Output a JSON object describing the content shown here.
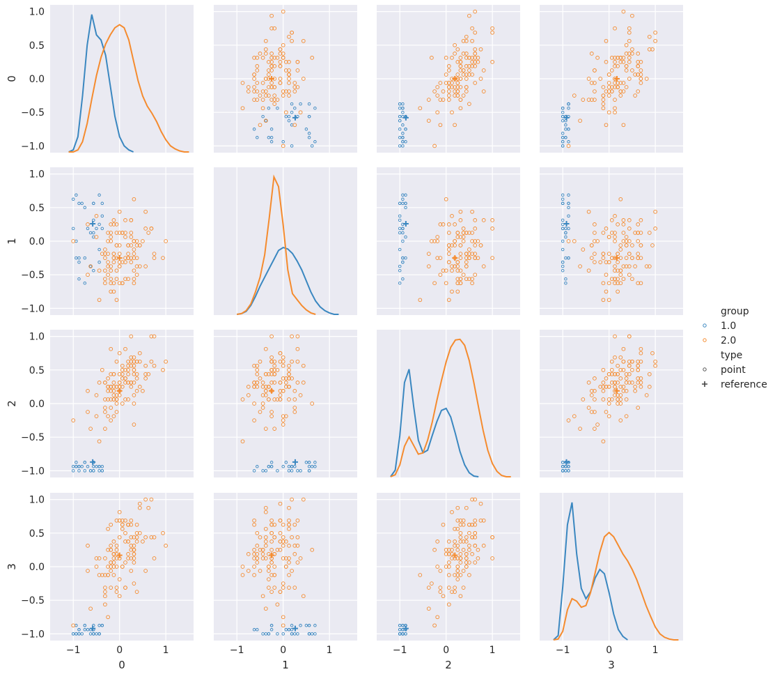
{
  "chart_data": {
    "type": "scatter",
    "kind": "pairplot",
    "variables": [
      "0",
      "1",
      "2",
      "3"
    ],
    "xlim": [
      -1.5,
      1.6
    ],
    "ylim": [
      -1.1,
      1.1
    ],
    "xticks": [
      -1,
      0,
      1
    ],
    "yticks": [
      -1.0,
      -0.5,
      0.0,
      0.5,
      1.0
    ],
    "xtick_labels": [
      "−1",
      "0",
      "1"
    ],
    "ytick_labels": [
      "−1.0",
      "−0.5",
      "0.0",
      "0.5",
      "1.0"
    ],
    "grid": true,
    "diagonal": "kde",
    "legend": {
      "placement": "right",
      "hue_title": "group",
      "hue_entries": [
        {
          "label": "1.0",
          "color": "#3a87c0"
        },
        {
          "label": "2.0",
          "color": "#f58b2e"
        }
      ],
      "style_title": "type",
      "style_entries": [
        {
          "label": "point",
          "marker": "circle"
        },
        {
          "label": "reference",
          "marker": "plus"
        }
      ]
    },
    "colors": {
      "1.0": "#3a87c0",
      "2.0": "#f58b2e",
      "panel_bg": "#eaeaf2",
      "grid": "#ffffff"
    },
    "reference_points": {
      "1.0": [
        -0.58,
        0.26,
        -0.87,
        -0.92
      ],
      "2.0": [
        0.0,
        -0.25,
        0.19,
        0.17
      ]
    },
    "point_clusters": {
      "note_dims": "per variable: [center, spread] for group 1.0 and 2.0 point clouds",
      "1.0": [
        [
          -0.72,
          0.18
        ],
        [
          0.2,
          0.35
        ],
        [
          -0.95,
          0.06
        ],
        [
          -0.95,
          0.06
        ]
      ],
      "2.0": [
        [
          0.05,
          0.35
        ],
        [
          -0.2,
          0.3
        ],
        [
          0.3,
          0.3
        ],
        [
          0.2,
          0.4
        ]
      ]
    },
    "kde": {
      "0": {
        "x": [
          -1.1,
          -1.0,
          -0.9,
          -0.8,
          -0.7,
          -0.6,
          -0.5,
          -0.4,
          -0.3,
          -0.2,
          -0.1,
          0.0,
          0.1,
          0.2,
          0.3,
          0.4,
          0.5,
          0.6,
          0.7,
          0.8,
          0.9,
          1.0,
          1.1,
          1.2,
          1.3,
          1.4,
          1.5
        ],
        "1.0": [
          0.0,
          0.02,
          0.15,
          0.55,
          1.05,
          1.35,
          1.15,
          1.1,
          0.95,
          0.65,
          0.35,
          0.15,
          0.06,
          0.02,
          0.0,
          null,
          null,
          null,
          null,
          null,
          null,
          null,
          null,
          null,
          null,
          null,
          null
        ],
        "2.0": [
          0.0,
          0.0,
          0.02,
          0.1,
          0.28,
          0.52,
          0.75,
          0.93,
          1.06,
          1.15,
          1.22,
          1.25,
          1.22,
          1.1,
          0.9,
          0.7,
          0.55,
          0.45,
          0.38,
          0.3,
          0.2,
          0.12,
          0.06,
          0.03,
          0.01,
          0.0,
          0.0
        ]
      },
      "1": {
        "x": [
          -1.0,
          -0.9,
          -0.8,
          -0.7,
          -0.6,
          -0.5,
          -0.4,
          -0.3,
          -0.2,
          -0.1,
          0.0,
          0.1,
          0.2,
          0.3,
          0.4,
          0.5,
          0.6,
          0.7,
          0.8,
          0.9,
          1.0,
          1.1,
          1.2
        ],
        "1.0": [
          0.0,
          0.01,
          0.04,
          0.12,
          0.24,
          0.38,
          0.5,
          0.62,
          0.74,
          0.86,
          0.9,
          0.88,
          0.82,
          0.72,
          0.6,
          0.45,
          0.3,
          0.18,
          0.1,
          0.05,
          0.02,
          0.0,
          0.0
        ],
        "2.0": [
          0.0,
          0.01,
          0.05,
          0.14,
          0.3,
          0.5,
          0.8,
          1.3,
          1.85,
          1.72,
          1.2,
          0.6,
          0.28,
          0.2,
          0.12,
          0.06,
          0.02,
          0.0,
          null,
          null,
          null,
          null,
          null
        ]
      },
      "2": {
        "x": [
          -1.2,
          -1.1,
          -1.0,
          -0.9,
          -0.8,
          -0.7,
          -0.6,
          -0.5,
          -0.4,
          -0.3,
          -0.2,
          -0.1,
          0.0,
          0.1,
          0.2,
          0.3,
          0.4,
          0.5,
          0.6,
          0.7,
          0.8,
          0.9,
          1.0,
          1.1,
          1.2,
          1.3,
          1.4
        ],
        "1.0": [
          0.0,
          0.1,
          0.62,
          1.42,
          1.62,
          1.05,
          0.55,
          0.36,
          0.4,
          0.62,
          0.83,
          1.0,
          1.03,
          0.9,
          0.65,
          0.38,
          0.18,
          0.06,
          0.01,
          0.0,
          null,
          null,
          null,
          null,
          null,
          null,
          null
        ],
        "2.0": [
          0.0,
          0.03,
          0.18,
          0.46,
          0.6,
          0.47,
          0.34,
          0.36,
          0.55,
          0.82,
          1.15,
          1.45,
          1.73,
          1.95,
          2.06,
          2.07,
          1.98,
          1.75,
          1.42,
          1.05,
          0.7,
          0.4,
          0.2,
          0.08,
          0.02,
          0.0,
          0.0
        ]
      },
      "3": {
        "x": [
          -1.2,
          -1.1,
          -1.0,
          -0.9,
          -0.8,
          -0.7,
          -0.6,
          -0.5,
          -0.4,
          -0.3,
          -0.2,
          -0.1,
          0.0,
          0.1,
          0.2,
          0.3,
          0.4,
          0.5,
          0.6,
          0.7,
          0.8,
          0.9,
          1.0,
          1.1,
          1.2,
          1.3,
          1.4,
          1.5
        ],
        "1.0": [
          0.0,
          0.05,
          0.62,
          1.34,
          1.6,
          1.0,
          0.6,
          0.48,
          0.56,
          0.72,
          0.82,
          0.77,
          0.55,
          0.3,
          0.12,
          0.04,
          0.0,
          null,
          null,
          null,
          null,
          null,
          null,
          null,
          null,
          null,
          null,
          null
        ],
        "2.0": [
          0.0,
          0.01,
          0.1,
          0.35,
          0.48,
          0.45,
          0.38,
          0.4,
          0.55,
          0.78,
          1.02,
          1.2,
          1.25,
          1.2,
          1.1,
          1.0,
          0.92,
          0.82,
          0.7,
          0.55,
          0.4,
          0.27,
          0.15,
          0.07,
          0.03,
          0.01,
          0.0,
          0.0
        ]
      }
    }
  }
}
